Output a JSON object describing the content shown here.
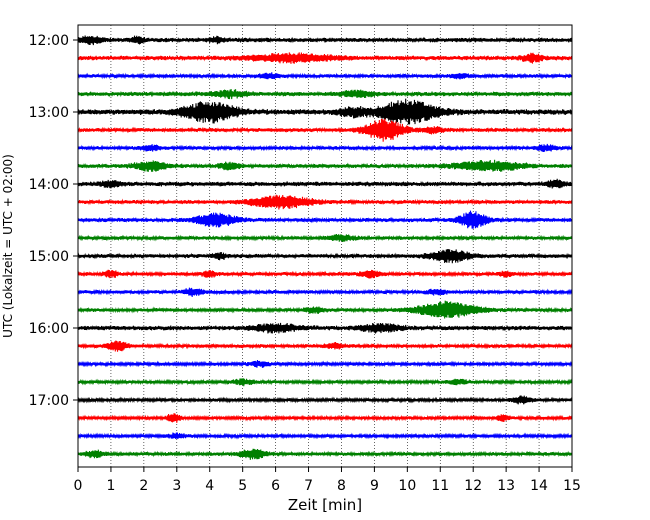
{
  "chart_data": {
    "type": "line",
    "title": "",
    "xlabel": "Zeit  [min]",
    "ylabel": "UTC (Lokalzeit = UTC + 02:00)",
    "xlim": [
      0,
      15
    ],
    "xticks": [
      "0",
      "1",
      "2",
      "3",
      "4",
      "5",
      "6",
      "7",
      "8",
      "9",
      "10",
      "11",
      "12",
      "13",
      "14",
      "15"
    ],
    "grid": "vertical dotted",
    "row_interval_minutes": 15,
    "row_colors": [
      "#000000",
      "#ff0000",
      "#0000ff",
      "#008000"
    ],
    "yticks": [
      "12:00",
      "13:00",
      "14:00",
      "15:00",
      "16:00",
      "17:00"
    ],
    "rows": [
      {
        "time": "12:00",
        "color": "#000000",
        "amplitude": 0.25,
        "bursts": [
          {
            "t": 0.4,
            "a": 0.35,
            "w": 0.3
          },
          {
            "t": 1.8,
            "a": 0.25,
            "w": 0.2
          },
          {
            "t": 4.2,
            "a": 0.25,
            "w": 0.2
          }
        ]
      },
      {
        "time": "12:15",
        "color": "#ff0000",
        "amplitude": 0.25,
        "bursts": [
          {
            "t": 6.5,
            "a": 0.35,
            "w": 1.2
          },
          {
            "t": 13.8,
            "a": 0.35,
            "w": 0.3
          }
        ]
      },
      {
        "time": "12:30",
        "color": "#0000ff",
        "amplitude": 0.2,
        "bursts": [
          {
            "t": 5.8,
            "a": 0.25,
            "w": 0.3
          },
          {
            "t": 11.6,
            "a": 0.2,
            "w": 0.3
          }
        ]
      },
      {
        "time": "12:45",
        "color": "#008000",
        "amplitude": 0.25,
        "bursts": [
          {
            "t": 4.6,
            "a": 0.3,
            "w": 0.5
          },
          {
            "t": 8.5,
            "a": 0.25,
            "w": 0.5
          }
        ]
      },
      {
        "time": "13:00",
        "color": "#000000",
        "amplitude": 0.3,
        "bursts": [
          {
            "t": 4.0,
            "a": 0.9,
            "w": 0.8
          },
          {
            "t": 10.0,
            "a": 1.1,
            "w": 0.9
          },
          {
            "t": 8.3,
            "a": 0.35,
            "w": 0.4
          }
        ]
      },
      {
        "time": "13:15",
        "color": "#ff0000",
        "amplitude": 0.22,
        "bursts": [
          {
            "t": 9.3,
            "a": 1.0,
            "w": 0.6
          },
          {
            "t": 10.8,
            "a": 0.25,
            "w": 0.3
          }
        ]
      },
      {
        "time": "13:30",
        "color": "#0000ff",
        "amplitude": 0.2,
        "bursts": [
          {
            "t": 2.2,
            "a": 0.25,
            "w": 0.3
          },
          {
            "t": 14.2,
            "a": 0.25,
            "w": 0.3
          }
        ]
      },
      {
        "time": "13:45",
        "color": "#008000",
        "amplitude": 0.22,
        "bursts": [
          {
            "t": 2.2,
            "a": 0.45,
            "w": 0.5
          },
          {
            "t": 4.6,
            "a": 0.35,
            "w": 0.3
          },
          {
            "t": 12.5,
            "a": 0.45,
            "w": 1.0
          }
        ]
      },
      {
        "time": "14:00",
        "color": "#000000",
        "amplitude": 0.25,
        "bursts": [
          {
            "t": 1.0,
            "a": 0.3,
            "w": 0.3
          },
          {
            "t": 14.5,
            "a": 0.3,
            "w": 0.3
          }
        ]
      },
      {
        "time": "14:15",
        "color": "#ff0000",
        "amplitude": 0.22,
        "bursts": [
          {
            "t": 6.2,
            "a": 0.6,
            "w": 0.9
          }
        ]
      },
      {
        "time": "14:30",
        "color": "#0000ff",
        "amplitude": 0.22,
        "bursts": [
          {
            "t": 4.2,
            "a": 0.6,
            "w": 0.6
          },
          {
            "t": 12.0,
            "a": 0.8,
            "w": 0.4
          }
        ]
      },
      {
        "time": "14:45",
        "color": "#008000",
        "amplitude": 0.2,
        "bursts": [
          {
            "t": 8.0,
            "a": 0.25,
            "w": 0.4
          }
        ]
      },
      {
        "time": "15:00",
        "color": "#000000",
        "amplitude": 0.22,
        "bursts": [
          {
            "t": 11.3,
            "a": 0.55,
            "w": 0.6
          },
          {
            "t": 4.3,
            "a": 0.3,
            "w": 0.2
          }
        ]
      },
      {
        "time": "15:15",
        "color": "#ff0000",
        "amplitude": 0.2,
        "bursts": [
          {
            "t": 1.0,
            "a": 0.3,
            "w": 0.2
          },
          {
            "t": 4.0,
            "a": 0.3,
            "w": 0.2
          },
          {
            "t": 8.9,
            "a": 0.3,
            "w": 0.3
          },
          {
            "t": 13.0,
            "a": 0.25,
            "w": 0.2
          }
        ]
      },
      {
        "time": "15:30",
        "color": "#0000ff",
        "amplitude": 0.2,
        "bursts": [
          {
            "t": 3.5,
            "a": 0.3,
            "w": 0.3
          },
          {
            "t": 10.9,
            "a": 0.25,
            "w": 0.3
          }
        ]
      },
      {
        "time": "15:45",
        "color": "#008000",
        "amplitude": 0.2,
        "bursts": [
          {
            "t": 11.2,
            "a": 0.75,
            "w": 0.9
          },
          {
            "t": 7.2,
            "a": 0.25,
            "w": 0.3
          }
        ]
      },
      {
        "time": "16:00",
        "color": "#000000",
        "amplitude": 0.25,
        "bursts": [
          {
            "t": 6.0,
            "a": 0.35,
            "w": 0.7
          },
          {
            "t": 9.2,
            "a": 0.35,
            "w": 0.6
          }
        ]
      },
      {
        "time": "16:15",
        "color": "#ff0000",
        "amplitude": 0.2,
        "bursts": [
          {
            "t": 1.2,
            "a": 0.45,
            "w": 0.3
          },
          {
            "t": 7.8,
            "a": 0.25,
            "w": 0.3
          }
        ]
      },
      {
        "time": "16:30",
        "color": "#0000ff",
        "amplitude": 0.18,
        "bursts": [
          {
            "t": 5.5,
            "a": 0.25,
            "w": 0.3
          }
        ]
      },
      {
        "time": "16:45",
        "color": "#008000",
        "amplitude": 0.18,
        "bursts": [
          {
            "t": 5.0,
            "a": 0.25,
            "w": 0.3
          },
          {
            "t": 11.5,
            "a": 0.25,
            "w": 0.3
          }
        ]
      },
      {
        "time": "17:00",
        "color": "#000000",
        "amplitude": 0.18,
        "bursts": [
          {
            "t": 13.5,
            "a": 0.35,
            "w": 0.3
          }
        ]
      },
      {
        "time": "17:15",
        "color": "#ff0000",
        "amplitude": 0.18,
        "bursts": [
          {
            "t": 2.9,
            "a": 0.45,
            "w": 0.2
          },
          {
            "t": 12.9,
            "a": 0.25,
            "w": 0.2
          }
        ]
      },
      {
        "time": "17:30",
        "color": "#0000ff",
        "amplitude": 0.18,
        "bursts": [
          {
            "t": 3.0,
            "a": 0.2,
            "w": 0.3
          }
        ]
      },
      {
        "time": "17:45",
        "color": "#008000",
        "amplitude": 0.2,
        "bursts": [
          {
            "t": 5.3,
            "a": 0.45,
            "w": 0.4
          },
          {
            "t": 0.5,
            "a": 0.3,
            "w": 0.3
          }
        ]
      }
    ]
  }
}
